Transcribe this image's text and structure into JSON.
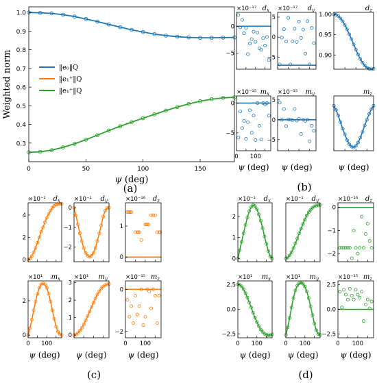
{
  "colors": {
    "blue": "#1f77b4",
    "orange": "#ff7f0e",
    "green": "#2ca02c"
  },
  "chart_data": [
    {
      "id": "a",
      "type": "line",
      "panel_label": "(a)",
      "xlabel": "ψ (deg)",
      "ylabel": "Weighted norm",
      "xlim": [
        0,
        180
      ],
      "ylim": [
        0.2,
        1.03
      ],
      "xticks": [
        0,
        50,
        100,
        150
      ],
      "yticks": [
        0.3,
        0.4,
        0.5,
        0.6,
        0.7,
        0.8,
        0.9,
        1.0
      ],
      "legend_position": "center-left",
      "series": [
        {
          "name": "‖e₀‖_Q",
          "color": "blue",
          "x": [
            0,
            10,
            20,
            30,
            40,
            50,
            60,
            70,
            80,
            90,
            100,
            110,
            120,
            130,
            140,
            150,
            160,
            170,
            180
          ],
          "y": [
            1.0,
            0.998,
            0.995,
            0.988,
            0.978,
            0.965,
            0.951,
            0.936,
            0.921,
            0.907,
            0.895,
            0.884,
            0.876,
            0.87,
            0.866,
            0.864,
            0.864,
            0.865,
            0.866
          ]
        },
        {
          "name": "‖e₁⁺‖_Q",
          "color": "orange",
          "hidden": true,
          "x": [],
          "y": []
        },
        {
          "name": "‖e₁⁺‖_Q",
          "color": "green",
          "x": [
            0,
            10,
            20,
            30,
            40,
            50,
            60,
            70,
            80,
            90,
            100,
            110,
            120,
            130,
            140,
            150,
            160,
            170,
            180
          ],
          "y": [
            0.25,
            0.253,
            0.262,
            0.277,
            0.296,
            0.318,
            0.342,
            0.367,
            0.39,
            0.412,
            0.433,
            0.454,
            0.474,
            0.493,
            0.51,
            0.524,
            0.535,
            0.542,
            0.545
          ]
        }
      ]
    },
    {
      "id": "b-dx",
      "type": "scatter",
      "group": "b",
      "title": "d_x",
      "multiplier": "×10⁻¹⁷",
      "color": "blue",
      "ylim": [
        -8,
        2.6
      ],
      "yticks": [
        -5,
        0
      ],
      "xlim": [
        0,
        180
      ],
      "xticks": [],
      "line": {
        "x": [
          0,
          180
        ],
        "y": [
          0,
          0
        ]
      },
      "x": [
        10,
        20,
        30,
        40,
        50,
        60,
        70,
        80,
        90,
        100,
        110,
        120,
        130,
        140,
        150,
        160,
        170
      ],
      "y": [
        2.1,
        -0.2,
        1.2,
        -1.3,
        -0.3,
        -5.2,
        -3.2,
        -2.4,
        -1.0,
        -2.9,
        -1.2,
        -4.1,
        -4.4,
        -2.2,
        -3.6,
        -2.0,
        -6.3
      ]
    },
    {
      "id": "b-dy",
      "type": "scatter",
      "group": "b",
      "title": "d_y",
      "multiplier": "×10⁻¹⁷",
      "color": "blue",
      "ylim": [
        -8,
        6.2
      ],
      "yticks": [
        -5,
        0,
        5
      ],
      "xlim": [
        0,
        180
      ],
      "xticks": [],
      "line": {
        "x": [
          0,
          180
        ],
        "y": [
          -7,
          -7
        ]
      },
      "x": [
        10,
        20,
        30,
        40,
        50,
        60,
        70,
        80,
        90,
        100,
        110,
        120,
        130,
        140,
        150,
        160,
        170
      ],
      "y": [
        -6.8,
        -0.1,
        2.0,
        -1.1,
        4.8,
        -6.8,
        -1.0,
        2.1,
        -1.2,
        3.9,
        -0.2,
        1.9,
        -4.1,
        4.0,
        -6.8,
        2.3,
        -1.5
      ]
    },
    {
      "id": "b-dz",
      "type": "line-markers",
      "group": "b",
      "title": "d_z",
      "multiplier": "",
      "color": "blue",
      "ylim": [
        0.865,
        1.005
      ],
      "yticks": [
        0.9,
        0.95,
        1.0
      ],
      "xlim": [
        0,
        180
      ],
      "xticks": [],
      "x": [
        0,
        10,
        20,
        30,
        40,
        50,
        60,
        70,
        80,
        90,
        100,
        110,
        120,
        130,
        140,
        150,
        160,
        170,
        180
      ],
      "y": [
        1.0,
        0.999,
        0.996,
        0.99,
        0.983,
        0.974,
        0.963,
        0.951,
        0.939,
        0.926,
        0.913,
        0.901,
        0.89,
        0.881,
        0.874,
        0.869,
        0.866,
        0.865,
        0.866
      ]
    },
    {
      "id": "b-mx",
      "type": "scatter",
      "group": "b",
      "title": "m_x",
      "multiplier": "×10⁻¹⁵",
      "color": "blue",
      "ylim": [
        -8,
        1.2
      ],
      "yticks": [
        -5,
        0
      ],
      "xlim": [
        0,
        180
      ],
      "xticks": [
        0,
        100
      ],
      "line": {
        "x": [
          0,
          180
        ],
        "y": [
          0,
          0
        ]
      },
      "x": [
        10,
        20,
        30,
        40,
        50,
        60,
        70,
        80,
        90,
        100,
        110,
        120,
        130,
        140,
        150,
        160,
        170
      ],
      "y": [
        -5.8,
        -1.4,
        -4.2,
        -3.0,
        -6.0,
        -3.2,
        -1.2,
        -5.0,
        -2.1,
        -6.2,
        0.0,
        -3.8,
        -6.1,
        0.0,
        -0.2,
        0.0,
        -2.1
      ]
    },
    {
      "id": "b-my",
      "type": "scatter",
      "group": "b",
      "title": "m_y",
      "multiplier": "×10⁻¹⁵",
      "color": "blue",
      "ylim": [
        -7.8,
        6.0
      ],
      "yticks": [
        -5,
        0,
        5
      ],
      "xlim": [
        0,
        180
      ],
      "xticks": [],
      "line": {
        "x": [
          0,
          180
        ],
        "y": [
          0,
          0
        ]
      },
      "x": [
        10,
        20,
        30,
        40,
        50,
        60,
        70,
        80,
        90,
        100,
        110,
        120,
        130,
        140,
        150,
        160,
        170
      ],
      "y": [
        4.3,
        0.0,
        2.7,
        -1.6,
        0.1,
        0.0,
        -0.1,
        2.7,
        -0.2,
        0.2,
        -3.6,
        0.0,
        -0.3,
        0.0,
        -5.4,
        -1.5,
        -2.8
      ]
    },
    {
      "id": "b-mz",
      "type": "line-markers",
      "group": "b",
      "title": "m_z",
      "multiplier": "",
      "color": "blue",
      "ylim": [
        -0.55,
        0.12
      ],
      "yticks": [],
      "xlim": [
        0,
        180
      ],
      "xticks": [],
      "x": [
        0,
        10,
        20,
        30,
        40,
        50,
        60,
        70,
        80,
        90,
        100,
        110,
        120,
        130,
        140,
        150,
        160,
        170,
        180
      ],
      "y": [
        0.0,
        -0.05,
        -0.12,
        -0.2,
        -0.28,
        -0.35,
        -0.42,
        -0.47,
        -0.5,
        -0.51,
        -0.49,
        -0.45,
        -0.39,
        -0.32,
        -0.24,
        -0.17,
        -0.1,
        -0.04,
        0.0
      ]
    },
    {
      "id": "c-dx",
      "type": "line-markers",
      "group": "c",
      "title": "d_x",
      "multiplier": "×10⁻¹",
      "color": "orange",
      "ylim": [
        -0.2,
        5.1
      ],
      "yticks": [
        0,
        2,
        4
      ],
      "xlim": [
        0,
        180
      ],
      "xticks": [],
      "x": [
        0,
        10,
        20,
        30,
        40,
        50,
        60,
        70,
        80,
        90,
        100,
        110,
        120,
        130,
        140,
        150,
        160,
        170,
        180
      ],
      "y": [
        0.0,
        0.08,
        0.3,
        0.65,
        1.05,
        1.5,
        2.0,
        2.5,
        2.9,
        3.35,
        3.75,
        4.1,
        4.4,
        4.65,
        4.82,
        4.92,
        4.98,
        5.0,
        5.0
      ]
    },
    {
      "id": "c-dy",
      "type": "line-markers",
      "group": "c",
      "title": "d_y",
      "multiplier": "×10⁻¹",
      "color": "orange",
      "ylim": [
        -2.75,
        0.25
      ],
      "yticks": [
        -2,
        -1,
        0
      ],
      "xlim": [
        0,
        180
      ],
      "xticks": [],
      "x": [
        0,
        10,
        20,
        30,
        40,
        50,
        60,
        70,
        80,
        90,
        100,
        110,
        120,
        130,
        140,
        150,
        160,
        170,
        180
      ],
      "y": [
        0.0,
        -0.4,
        -0.85,
        -1.3,
        -1.7,
        -2.05,
        -2.3,
        -2.45,
        -2.5,
        -2.45,
        -2.3,
        -2.05,
        -1.7,
        -1.3,
        -0.9,
        -0.45,
        -0.15,
        -0.02,
        0.0
      ]
    },
    {
      "id": "c-dz",
      "type": "scatter",
      "group": "c",
      "title": "d_z",
      "multiplier": "×10⁻¹⁶",
      "color": "orange",
      "ylim": [
        -0.15,
        1.75
      ],
      "yticks": [
        0,
        1
      ],
      "xlim": [
        0,
        180
      ],
      "xticks": [],
      "line": {
        "x": [
          0,
          180
        ],
        "y": [
          0,
          0
        ]
      },
      "x": [
        10,
        15,
        20,
        25,
        30,
        50,
        60,
        65,
        70,
        80,
        100,
        105,
        110,
        115,
        130,
        140,
        150,
        160,
        170,
        175
      ],
      "y": [
        1.45,
        1.45,
        1.45,
        1.45,
        1.45,
        0.8,
        0.8,
        0.8,
        0.8,
        0.55,
        1.05,
        1.05,
        1.05,
        1.05,
        1.35,
        1.35,
        1.35,
        0.8,
        0.8,
        0.8
      ]
    },
    {
      "id": "c-mx",
      "type": "line-markers",
      "group": "c",
      "title": "m_x",
      "multiplier": "×10¹",
      "color": "orange",
      "ylim": [
        -0.15,
        3.15
      ],
      "yticks": [
        0,
        2
      ],
      "xlim": [
        0,
        180
      ],
      "xticks": [
        0,
        100
      ],
      "x": [
        0,
        10,
        20,
        30,
        40,
        50,
        60,
        70,
        80,
        90,
        100,
        110,
        120,
        130,
        140,
        150,
        160,
        170,
        180
      ],
      "y": [
        0.0,
        0.4,
        0.9,
        1.45,
        1.95,
        2.4,
        2.75,
        2.95,
        3.0,
        2.95,
        2.75,
        2.4,
        1.95,
        1.45,
        0.95,
        0.5,
        0.2,
        0.05,
        0.0
      ]
    },
    {
      "id": "c-my",
      "type": "line-markers",
      "group": "c",
      "title": "m_y",
      "multiplier": "×10¹",
      "color": "orange",
      "ylim": [
        -0.15,
        3.1
      ],
      "yticks": [
        0,
        1,
        2,
        3
      ],
      "xlim": [
        0,
        180
      ],
      "xticks": [],
      "x": [
        0,
        10,
        20,
        30,
        40,
        50,
        60,
        70,
        80,
        90,
        100,
        110,
        120,
        130,
        140,
        150,
        160,
        170,
        180
      ],
      "y": [
        0.0,
        0.03,
        0.12,
        0.25,
        0.42,
        0.62,
        0.85,
        1.1,
        1.35,
        1.6,
        1.85,
        2.1,
        2.32,
        2.5,
        2.66,
        2.78,
        2.86,
        2.9,
        2.92
      ]
    },
    {
      "id": "c-mz",
      "type": "scatter",
      "group": "c",
      "title": "m_z",
      "multiplier": "×10⁻¹⁵",
      "color": "orange",
      "ylim": [
        -2.3,
        0.4
      ],
      "yticks": [
        -2,
        0
      ],
      "xlim": [
        0,
        180
      ],
      "xticks": [
        0,
        100
      ],
      "line": {
        "x": [
          0,
          180
        ],
        "y": [
          0,
          0
        ]
      },
      "x": [
        10,
        20,
        30,
        40,
        50,
        60,
        70,
        80,
        90,
        100,
        110,
        120,
        130,
        140,
        150,
        160,
        170
      ],
      "y": [
        -0.5,
        -1.3,
        -0.8,
        -1.6,
        -0.3,
        -1.2,
        -0.8,
        0.0,
        -1.7,
        -1.3,
        0.0,
        -0.1,
        -0.9,
        0.0,
        -0.3,
        -1.6,
        -0.3
      ]
    },
    {
      "id": "d-dx",
      "type": "line-markers",
      "group": "d",
      "title": "d_x",
      "multiplier": "×10⁻¹",
      "color": "green",
      "ylim": [
        -0.15,
        2.65
      ],
      "yticks": [
        0,
        1,
        2
      ],
      "xlim": [
        0,
        180
      ],
      "xticks": [],
      "x": [
        0,
        10,
        20,
        30,
        40,
        50,
        60,
        70,
        80,
        90,
        100,
        110,
        120,
        130,
        140,
        150,
        160,
        170,
        180
      ],
      "y": [
        0.0,
        0.4,
        0.8,
        1.2,
        1.6,
        1.95,
        2.25,
        2.45,
        2.55,
        2.5,
        2.35,
        2.1,
        1.8,
        1.45,
        1.05,
        0.7,
        0.35,
        0.1,
        0.0
      ]
    },
    {
      "id": "d-dy",
      "type": "line-markers",
      "group": "d",
      "title": "d_y",
      "multiplier": "×10⁻¹",
      "color": "green",
      "ylim": [
        -0.15,
        2.65
      ],
      "yticks": [],
      "xlim": [
        0,
        180
      ],
      "xticks": [],
      "x": [
        0,
        10,
        20,
        30,
        40,
        50,
        60,
        70,
        80,
        90,
        100,
        110,
        120,
        130,
        140,
        150,
        160,
        170,
        180
      ],
      "y": [
        0.0,
        0.05,
        0.15,
        0.3,
        0.5,
        0.72,
        0.95,
        1.2,
        1.42,
        1.65,
        1.85,
        2.05,
        2.2,
        2.32,
        2.42,
        2.48,
        2.52,
        2.54,
        2.55
      ]
    },
    {
      "id": "d-dz",
      "type": "scatter",
      "group": "d",
      "title": "d_z",
      "multiplier": "×10⁻¹⁶",
      "color": "green",
      "ylim": [
        -2.35,
        0.2
      ],
      "yticks": [
        -2,
        -1,
        0
      ],
      "xlim": [
        0,
        180
      ],
      "xticks": [],
      "line": {
        "x": [
          0,
          180
        ],
        "y": [
          0,
          0
        ]
      },
      "x": [
        10,
        20,
        30,
        40,
        50,
        60,
        70,
        80,
        90,
        100,
        110,
        120,
        130,
        140,
        150,
        160,
        170
      ],
      "y": [
        -1.75,
        -1.75,
        -1.75,
        -1.75,
        -1.75,
        -1.75,
        -2.2,
        -1.0,
        -1.75,
        -2.0,
        -1.75,
        -0.4,
        -1.75,
        -1.15,
        -0.7,
        -1.45,
        -1.75
      ]
    },
    {
      "id": "d-mx",
      "type": "line-markers",
      "group": "d",
      "title": "m_x",
      "multiplier": "×10¹",
      "color": "green",
      "ylim": [
        -2.9,
        2.9
      ],
      "yticks": [
        -2.5,
        0.0,
        2.5
      ],
      "xlim": [
        0,
        180
      ],
      "xticks": [
        0,
        100
      ],
      "x": [
        0,
        10,
        20,
        30,
        40,
        50,
        60,
        70,
        80,
        90,
        100,
        110,
        120,
        130,
        140,
        150,
        160,
        170,
        180
      ],
      "y": [
        2.55,
        2.5,
        2.35,
        2.05,
        1.65,
        1.2,
        0.7,
        0.2,
        -0.35,
        -0.85,
        -1.3,
        -1.7,
        -2.05,
        -2.3,
        -2.5,
        -2.6,
        -2.65,
        -2.62,
        -2.55
      ]
    },
    {
      "id": "d-my",
      "type": "line-markers",
      "group": "d",
      "title": "m_y",
      "multiplier": "×10¹",
      "color": "green",
      "ylim": [
        -0.15,
        2.85
      ],
      "yticks": [],
      "xlim": [
        0,
        180
      ],
      "xticks": [
        0,
        100
      ],
      "x": [
        0,
        10,
        20,
        30,
        40,
        50,
        60,
        70,
        80,
        90,
        100,
        110,
        120,
        130,
        140,
        150,
        160,
        170,
        180
      ],
      "y": [
        0.0,
        0.4,
        0.9,
        1.45,
        1.95,
        2.35,
        2.6,
        2.72,
        2.75,
        2.7,
        2.55,
        2.3,
        1.95,
        1.5,
        1.05,
        0.6,
        0.25,
        0.05,
        0.0
      ]
    },
    {
      "id": "d-mz",
      "type": "scatter",
      "group": "d",
      "title": "m_z",
      "multiplier": "×10⁻¹⁵",
      "color": "green",
      "ylim": [
        -2.9,
        2.9
      ],
      "yticks": [
        -2.5,
        0.0,
        2.5
      ],
      "xlim": [
        0,
        180
      ],
      "xticks": [
        0,
        100
      ],
      "line": {
        "x": [
          0,
          180
        ],
        "y": [
          0,
          0
        ]
      },
      "x": [
        10,
        20,
        30,
        40,
        50,
        60,
        70,
        80,
        90,
        100,
        110,
        120,
        130,
        140,
        150,
        160,
        170
      ],
      "y": [
        1.8,
        0.2,
        2.0,
        1.5,
        1.0,
        2.1,
        1.4,
        1.0,
        2.0,
        1.5,
        1.2,
        1.8,
        -1.2,
        0.5,
        1.0,
        0.1,
        0.8
      ]
    }
  ],
  "subplot_xlabel": "ψ (deg)",
  "panel_labels": {
    "b": "(b)",
    "c": "(c)",
    "d": "(d)"
  }
}
